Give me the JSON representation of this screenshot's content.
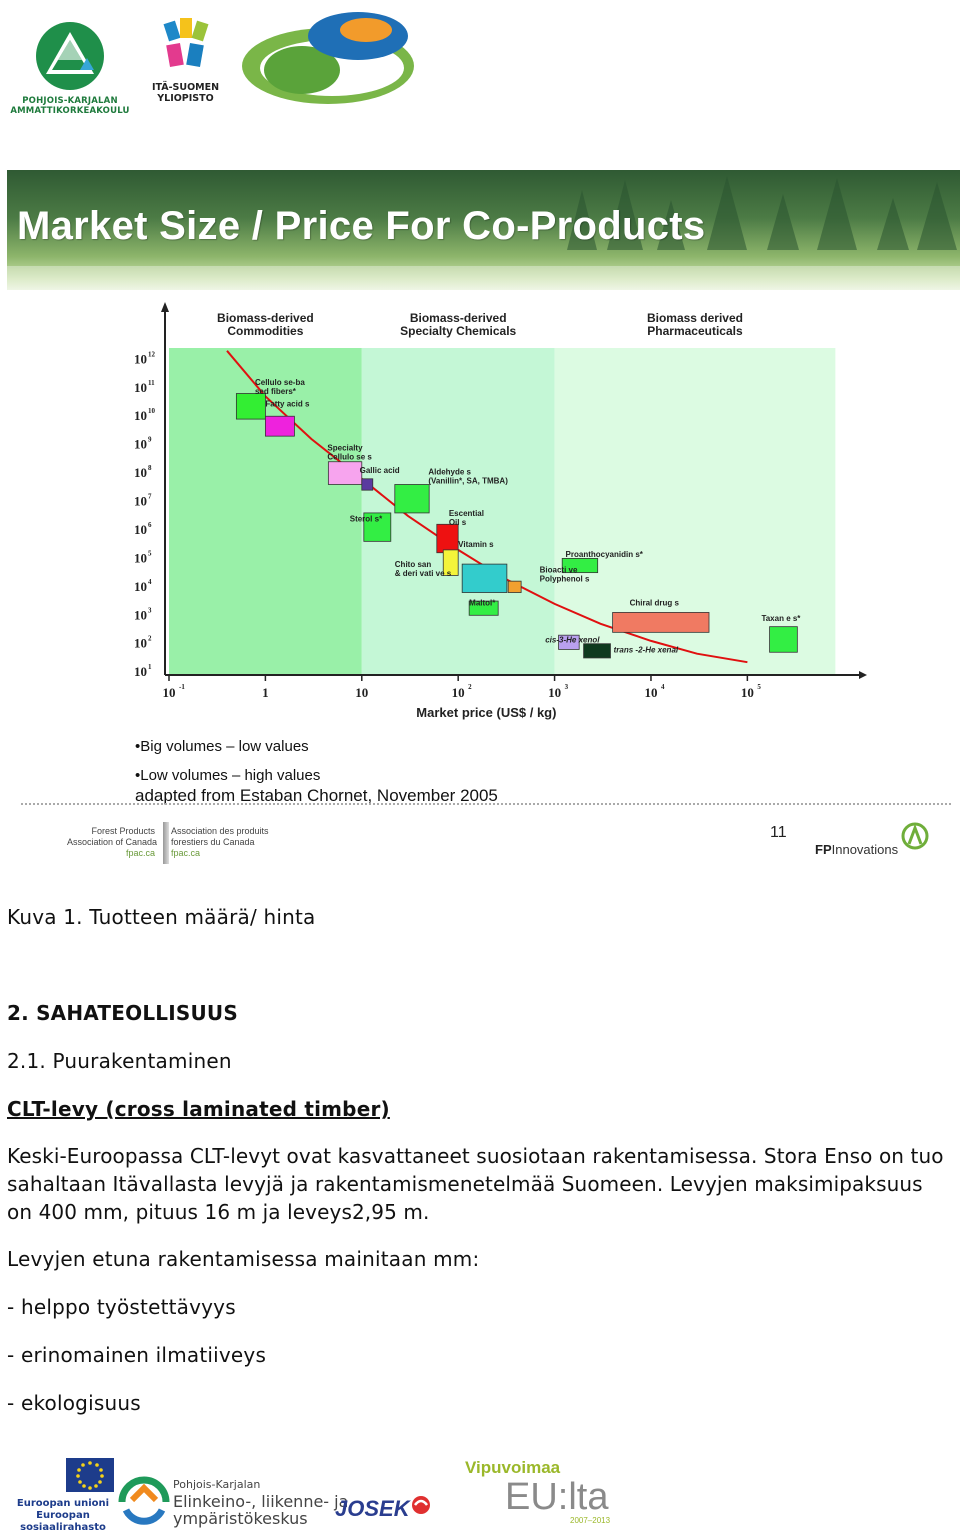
{
  "header_logos": {
    "pkamk_line1": "POHJOIS-KARJALAN",
    "pkamk_line2": "AMMATTIKORKEAKOULU",
    "isy_line1": "ITÄ-SUOMEN",
    "isy_line2": "YLIOPISTO"
  },
  "slide": {
    "title": "Market Size / Price For Co-Products",
    "bullets": [
      "•Big volumes – low values",
      "•Low volumes   – high values"
    ],
    "source": "adapted from Estaban Chornet, November 2005",
    "page_number": "11",
    "fpac": {
      "en_line1": "Forest Products",
      "en_line2": "Association of Canada",
      "en_url": "fpac.ca",
      "fr_line1": "Association des produits",
      "fr_line2": "forestiers du Canada",
      "fr_url": "fpac.ca"
    },
    "fpinnovations": {
      "bold": "FP",
      "rest": "Innovations"
    }
  },
  "chart_data": {
    "type": "scatter",
    "x_scale": "log",
    "y_scale": "log",
    "xlabel": "Market price (US$ / kg)",
    "ylabel": "",
    "x_ticks": [
      {
        "value": 0.1,
        "base": "10",
        "exp": "-1"
      },
      {
        "value": 1,
        "base": "1",
        "exp": ""
      },
      {
        "value": 10,
        "base": "10",
        "exp": ""
      },
      {
        "value": 100,
        "base": "10",
        "exp": "2"
      },
      {
        "value": 1000,
        "base": "10",
        "exp": "3"
      },
      {
        "value": 10000,
        "base": "10",
        "exp": "4"
      },
      {
        "value": 100000,
        "base": "10",
        "exp": "5"
      }
    ],
    "y_ticks": [
      {
        "value": 1,
        "exp": "1"
      },
      {
        "value": 2,
        "exp": "2"
      },
      {
        "value": 3,
        "exp": "3"
      },
      {
        "value": 4,
        "exp": "4"
      },
      {
        "value": 5,
        "exp": "5"
      },
      {
        "value": 6,
        "exp": "6"
      },
      {
        "value": 7,
        "exp": "7"
      },
      {
        "value": 8,
        "exp": "8"
      },
      {
        "value": 9,
        "exp": "9"
      },
      {
        "value": 10,
        "exp": "10"
      },
      {
        "value": 11,
        "exp": "11"
      },
      {
        "value": 12,
        "exp": "12"
      }
    ],
    "regions": [
      {
        "line1": "Biomass-derived",
        "line2": "Commodities",
        "x_from": 0.1,
        "x_to": 10,
        "color": "#99f0a8"
      },
      {
        "line1": "Biomass-derived",
        "line2": "Specialty Chemicals",
        "x_from": 10,
        "x_to": 1000,
        "color": "#c4f7d6"
      },
      {
        "line1": "Biomass derived",
        "line2": "Pharmaceuticals",
        "x_from": 1000,
        "x_to": 100000,
        "color": "#dcfbe2"
      }
    ],
    "trend": [
      [
        0.4,
        12.3
      ],
      [
        1,
        10.7
      ],
      [
        3,
        9.2
      ],
      [
        10,
        7.8
      ],
      [
        30,
        6.5
      ],
      [
        100,
        5.3
      ],
      [
        300,
        4.3
      ],
      [
        1000,
        3.4
      ],
      [
        3000,
        2.7
      ],
      [
        10000,
        2.1
      ],
      [
        30000,
        1.65
      ],
      [
        100000,
        1.35
      ]
    ],
    "points": [
      {
        "label": "Cellulo se-ba sed fibers*",
        "x_from": 0.5,
        "x_to": 1.0,
        "y_from": 9.9,
        "y_to": 10.8,
        "color": "#33ee33"
      },
      {
        "label": "Fatty acid s",
        "x_from": 1.0,
        "x_to": 2.0,
        "y_from": 9.3,
        "y_to": 10.0,
        "color": "#ee22dd"
      },
      {
        "label": "Specialty Cellulo se s",
        "x_from": 4.5,
        "x_to": 10,
        "y_from": 7.6,
        "y_to": 8.4,
        "color": "#f7a4ee"
      },
      {
        "label": "Gallic acid",
        "x_from": 10,
        "x_to": 13,
        "y_from": 7.4,
        "y_to": 7.8,
        "color": "#5a3aa0"
      },
      {
        "label": "Aldehyde s (Vanillin*, SA, TMBA)",
        "x_from": 22,
        "x_to": 50,
        "y_from": 6.6,
        "y_to": 7.6,
        "color": "#33ee44"
      },
      {
        "label": "Sterol s*",
        "x_from": 10.5,
        "x_to": 20,
        "y_from": 5.6,
        "y_to": 6.6,
        "color": "#33ee44"
      },
      {
        "label": "Escential Oil s",
        "x_from": 60,
        "x_to": 100,
        "y_from": 5.2,
        "y_to": 6.2,
        "color": "#ee1111"
      },
      {
        "label": "Vitamin s",
        "x_from": 70,
        "x_to": 100,
        "y_from": 4.4,
        "y_to": 5.3,
        "color": "#f4f43a"
      },
      {
        "label": "Chito san & deri vati ve s",
        "x_from": 110,
        "x_to": 320,
        "y_from": 3.8,
        "y_to": 4.8,
        "color": "#33cccc"
      },
      {
        "label": "Bioacti ve Polyphenol s",
        "x_from": 330,
        "x_to": 450,
        "y_from": 3.8,
        "y_to": 4.2,
        "color": "#f2a030"
      },
      {
        "label": "Proanthocyanidin s*",
        "x_from": 1200,
        "x_to": 2800,
        "y_from": 4.5,
        "y_to": 5.0,
        "color": "#33ee44"
      },
      {
        "label": "Maltol*",
        "x_from": 130,
        "x_to": 260,
        "y_from": 3.0,
        "y_to": 3.5,
        "color": "#33ee44"
      },
      {
        "label": "Chiral drug s",
        "x_from": 4000,
        "x_to": 40000,
        "y_from": 2.4,
        "y_to": 3.1,
        "color": "#f07a62"
      },
      {
        "label": "cis-3-He xenol",
        "x_from": 1100,
        "x_to": 1800,
        "y_from": 1.8,
        "y_to": 2.3,
        "color": "#b9a0ee"
      },
      {
        "label": "trans -2-He xenal",
        "x_from": 2000,
        "x_to": 3800,
        "y_from": 1.5,
        "y_to": 2.0,
        "color": "#0e3a1e"
      },
      {
        "label": "Taxan e s*",
        "x_from": 170000,
        "x_to": 330000,
        "y_from": 1.7,
        "y_to": 2.6,
        "color": "#33ee44"
      }
    ]
  },
  "document": {
    "caption": "Kuva 1. Tuotteen määrä/ hinta",
    "heading": "2. SAHATEOLLISUUS",
    "subheading": "2.1. Puurakentaminen",
    "underlined_heading": "CLT-levy (cross laminated timber)",
    "paragraph": "Keski-Euroopassa CLT-levyt ovat kasvattaneet suosiotaan rakentamisessa. Stora Enso on tuo sahaltaan Itävallasta levyjä ja rakentamismenetelmää Suomeen. Levyjen maksimipaksuus on 400 mm, pituus 16 m ja leveys2,95 m.",
    "lead": "Levyjen etuna rakentamisessa mainitaan mm:",
    "list": [
      "- helppo työstettävyys",
      "- erinomainen ilmatiiveys",
      "- ekologisuus"
    ]
  },
  "footer_logos": {
    "eu_line1": "Euroopan unioni",
    "eu_line2": "Euroopan sosiaalirahasto",
    "ely_line1": "Pohjois-Karjalan",
    "ely_line2": "Elinkeino-, liikenne- ja",
    "ely_line3": "ympäristökeskus",
    "josek": "JOSEK",
    "vipu_line1": "Vipuvoimaa",
    "vipu_line2": "EU:lta",
    "vipu_line3": "2007–2013"
  },
  "colors": {
    "title_text": "#ffffff",
    "trend_line": "#e01010",
    "eu_blue": "#1d3c8b",
    "vipu_green": "#9bb82a"
  }
}
